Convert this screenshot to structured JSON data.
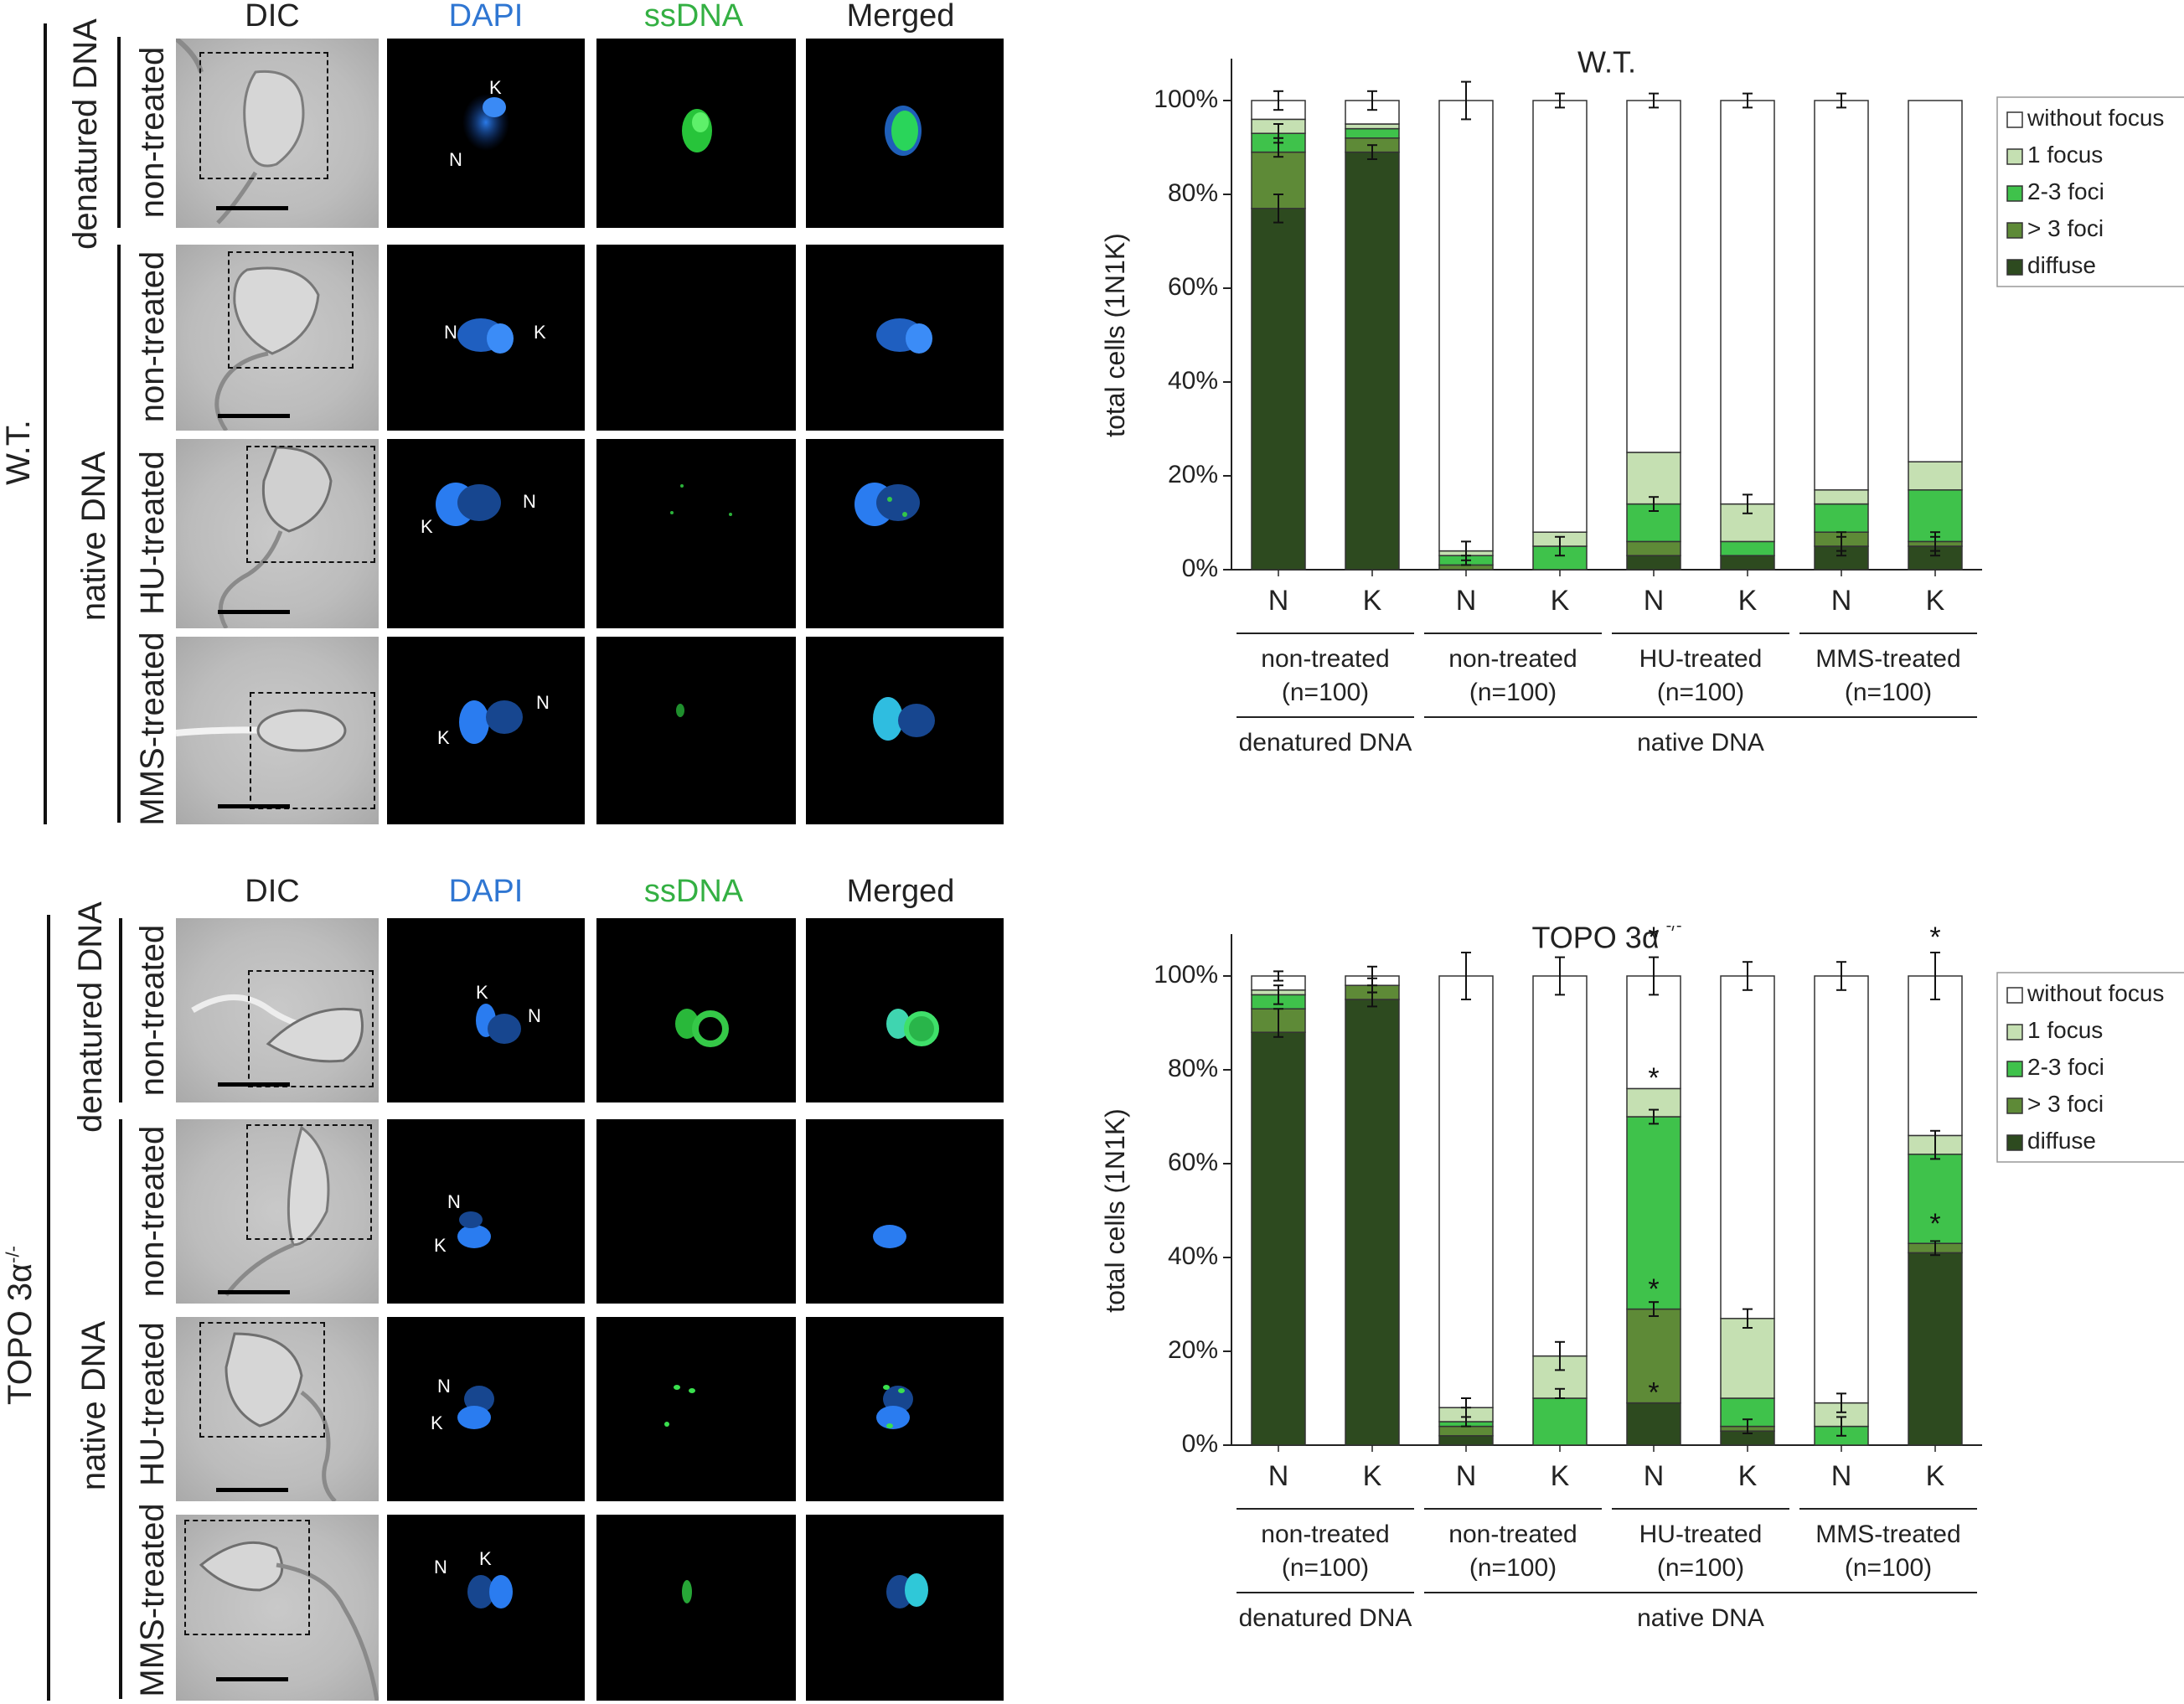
{
  "figure": {
    "col_headers": [
      {
        "label": "DIC",
        "color": "#111111"
      },
      {
        "label": "DAPI",
        "color": "#2f76d2"
      },
      {
        "label": "ssDNA",
        "color": "#34b043"
      },
      {
        "label": "Merged",
        "color": "#111111"
      }
    ],
    "top": {
      "genotype": "W.T.",
      "group_denatured": "denatured DNA",
      "group_native": "native DNA",
      "rows": [
        {
          "label": "non-treated",
          "markers": [
            "K",
            "N"
          ]
        },
        {
          "label": "non-treated",
          "markers": [
            "N",
            "K"
          ]
        },
        {
          "label": "HU-treated",
          "markers": [
            "K",
            "N"
          ]
        },
        {
          "label": "MMS-treated",
          "markers": [
            "K",
            "N"
          ]
        }
      ]
    },
    "bottom": {
      "genotype": "TOPO 3α",
      "genotype_sup": "-/-",
      "group_denatured": "denatured DNA",
      "group_native": "native DNA",
      "rows": [
        {
          "label": "non-treated",
          "markers": [
            "K",
            "N"
          ]
        },
        {
          "label": "non-treated",
          "markers": [
            "N",
            "K"
          ]
        },
        {
          "label": "HU-treated",
          "markers": [
            "N",
            "K"
          ]
        },
        {
          "label": "MMS-treated",
          "markers": [
            "N",
            "K"
          ]
        }
      ]
    }
  },
  "chart_data": [
    {
      "type": "bar",
      "stacked": true,
      "title": "W.T.",
      "title_sup": "",
      "ylabel": "total cells (1N1K)",
      "ylim": [
        0,
        100
      ],
      "yticks": [
        "0%",
        "20%",
        "40%",
        "60%",
        "80%",
        "100%"
      ],
      "categories": [
        "N",
        "K",
        "N",
        "K",
        "N",
        "K",
        "N",
        "K"
      ],
      "groups": [
        {
          "label": "non-treated",
          "n": "(n=100)"
        },
        {
          "label": "non-treated",
          "n": "(n=100)"
        },
        {
          "label": "HU-treated",
          "n": "(n=100)"
        },
        {
          "label": "MMS-treated",
          "n": "(n=100)"
        }
      ],
      "supergroups": [
        {
          "label": "denatured DNA"
        },
        {
          "label": "native DNA"
        }
      ],
      "legend_position": "top-right",
      "series": [
        {
          "name": "diffuse",
          "color": "#2d4a1f",
          "values": [
            77,
            89,
            0,
            0,
            3,
            3,
            5,
            5
          ]
        },
        {
          "name": "> 3 foci",
          "color": "#5e8a37",
          "values": [
            12,
            3,
            1,
            0,
            3,
            0,
            3,
            1
          ]
        },
        {
          "name": "2-3 foci",
          "color": "#3fc24b",
          "values": [
            4,
            2,
            2,
            5,
            8,
            3,
            6,
            11
          ]
        },
        {
          "name": "1 focus",
          "color": "#c5e0b2",
          "values": [
            3,
            1,
            1,
            3,
            11,
            8,
            3,
            6
          ]
        },
        {
          "name": "without focus",
          "color": "#ffffff",
          "values": [
            4,
            5,
            96,
            92,
            75,
            86,
            83,
            77
          ]
        }
      ],
      "error_bars": [
        {
          "at": 100,
          "err": [
            2,
            2,
            4,
            1.5,
            1.5,
            1.5,
            1.5,
            0
          ]
        },
        {
          "at_stack": [
            93,
            92,
            0,
            0,
            14,
            0,
            14,
            0
          ],
          "err": [
            2,
            0,
            0,
            0,
            1.5,
            0,
            0,
            0
          ]
        },
        {
          "at_stack": [
            90,
            89,
            4,
            5,
            0,
            14,
            6,
            6
          ],
          "err": [
            2,
            1.5,
            2,
            2,
            0,
            2,
            2,
            2
          ]
        },
        {
          "at_stack": [
            77,
            0,
            2,
            0,
            0,
            0,
            5,
            5
          ],
          "err": [
            3,
            0,
            1,
            0,
            0,
            0,
            2,
            2
          ]
        }
      ],
      "stars": []
    },
    {
      "type": "bar",
      "stacked": true,
      "title": "TOPO 3α",
      "title_sup": "-/-",
      "ylabel": "total cells (1N1K)",
      "ylim": [
        0,
        100
      ],
      "yticks": [
        "0%",
        "20%",
        "40%",
        "60%",
        "80%",
        "100%"
      ],
      "categories": [
        "N",
        "K",
        "N",
        "K",
        "N",
        "K",
        "N",
        "K"
      ],
      "groups": [
        {
          "label": "non-treated",
          "n": "(n=100)"
        },
        {
          "label": "non-treated",
          "n": "(n=100)"
        },
        {
          "label": "HU-treated",
          "n": "(n=100)"
        },
        {
          "label": "MMS-treated",
          "n": "(n=100)"
        }
      ],
      "supergroups": [
        {
          "label": "denatured DNA"
        },
        {
          "label": "native DNA"
        }
      ],
      "legend_position": "top-right",
      "series": [
        {
          "name": "diffuse",
          "color": "#2d4a1f",
          "values": [
            88,
            95,
            2,
            0,
            9,
            3,
            0,
            41
          ]
        },
        {
          "name": "> 3 foci",
          "color": "#5e8a37",
          "values": [
            5,
            3,
            2,
            0,
            20,
            1,
            0,
            2
          ]
        },
        {
          "name": "2-3 foci",
          "color": "#3fc24b",
          "values": [
            3,
            0,
            1,
            10,
            41,
            6,
            4,
            19
          ]
        },
        {
          "name": "1 focus",
          "color": "#c5e0b2",
          "values": [
            1,
            0,
            3,
            9,
            6,
            17,
            5,
            4
          ]
        },
        {
          "name": "without focus",
          "color": "#ffffff",
          "values": [
            3,
            2,
            92,
            81,
            24,
            73,
            91,
            34
          ]
        }
      ],
      "error_bars": [
        {
          "at": 100,
          "err": [
            1,
            2,
            5,
            4,
            4,
            3,
            3,
            5
          ]
        },
        {
          "at_stack": [
            96,
            98,
            8,
            19,
            70,
            27,
            9,
            64
          ],
          "err": [
            2,
            1.5,
            2,
            3,
            1.5,
            2,
            2,
            3
          ]
        },
        {
          "at_stack": [
            90,
            95,
            6,
            11,
            29,
            4,
            4,
            42
          ],
          "err": [
            3,
            1.5,
            2,
            1,
            1.5,
            1.5,
            2,
            1.5
          ]
        }
      ],
      "stars": [
        {
          "index": 4,
          "value": 108
        },
        {
          "index": 7,
          "value": 108
        },
        {
          "index": 4,
          "value": 78
        },
        {
          "index": 4,
          "value": 33
        },
        {
          "index": 4,
          "value": 11
        },
        {
          "index": 7,
          "value": 47
        }
      ],
      "star_symbol": "*"
    }
  ]
}
